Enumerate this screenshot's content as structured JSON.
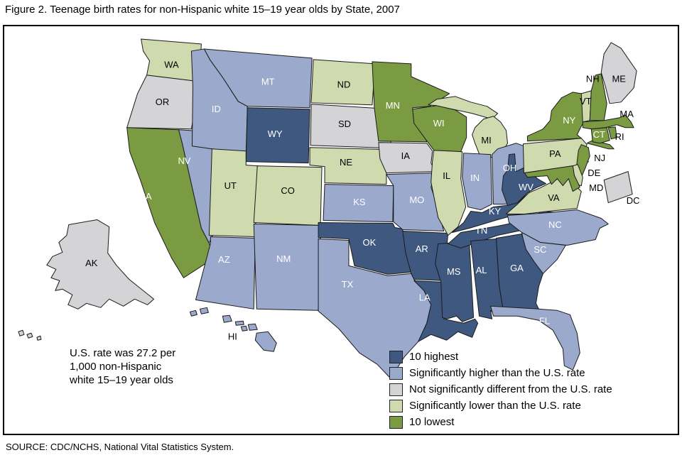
{
  "title": "Figure 2. Teenage birth rates for non-Hispanic white 15–19 year olds by State, 2007",
  "source": "SOURCE: CDC/NCHS, National Vital Statistics System.",
  "annotation": {
    "lines": [
      "U.S. rate was 27.2 per",
      "1,000 non-Hispanic",
      "white 15–19 year olds"
    ]
  },
  "colors": {
    "highest_10": "#3E5880",
    "sig_higher": "#9AA9CC",
    "not_sig_diff": "#D4D4D7",
    "sig_lower": "#CFDBAF",
    "lowest_10": "#7B9B43",
    "state_border": "#1b1b1b",
    "label_on_dark": "#FFFFFF",
    "label_on_light": "#000000"
  },
  "chart_data": {
    "type": "choropleth",
    "title": "Teenage birth rates for non-Hispanic white 15–19 year olds by State, 2007",
    "us_rate_note": "U.S. rate was 27.2 per 1,000 non-Hispanic white 15–19 year olds",
    "legend": [
      {
        "key": "highest_10",
        "label": "10 highest"
      },
      {
        "key": "sig_higher",
        "label": "Significantly higher than the U.S. rate"
      },
      {
        "key": "not_sig_diff",
        "label": "Not significantly different from the U.S. rate"
      },
      {
        "key": "sig_lower",
        "label": "Significantly lower than the U.S. rate"
      },
      {
        "key": "lowest_10",
        "label": "10 lowest"
      }
    ],
    "categories": {
      "highest_10": [
        "WY",
        "OK",
        "AR",
        "LA",
        "MS",
        "AL",
        "GA",
        "TN",
        "KY",
        "WV"
      ],
      "sig_higher": [
        "MT",
        "ID",
        "NV",
        "AZ",
        "NM",
        "KS",
        "MO",
        "TX",
        "IN",
        "OH",
        "NC",
        "SC",
        "FL",
        "HI"
      ],
      "not_sig_diff": [
        "OR",
        "SD",
        "IA",
        "ME",
        "AK",
        "DC"
      ],
      "sig_lower": [
        "WA",
        "UT",
        "CO",
        "ND",
        "NE",
        "IL",
        "MI",
        "PA",
        "VA",
        "VT",
        "DE"
      ],
      "lowest_10": [
        "CA",
        "MN",
        "WI",
        "NY",
        "NH",
        "MA",
        "CT",
        "RI",
        "NJ",
        "MD"
      ]
    },
    "states": [
      {
        "abbr": "WA",
        "category": "sig_lower"
      },
      {
        "abbr": "OR",
        "category": "not_sig_diff"
      },
      {
        "abbr": "CA",
        "category": "lowest_10"
      },
      {
        "abbr": "NV",
        "category": "sig_higher"
      },
      {
        "abbr": "ID",
        "category": "sig_higher"
      },
      {
        "abbr": "MT",
        "category": "sig_higher"
      },
      {
        "abbr": "WY",
        "category": "highest_10"
      },
      {
        "abbr": "UT",
        "category": "sig_lower"
      },
      {
        "abbr": "CO",
        "category": "sig_lower"
      },
      {
        "abbr": "AZ",
        "category": "sig_higher"
      },
      {
        "abbr": "NM",
        "category": "sig_higher"
      },
      {
        "abbr": "ND",
        "category": "sig_lower"
      },
      {
        "abbr": "SD",
        "category": "not_sig_diff"
      },
      {
        "abbr": "NE",
        "category": "sig_lower"
      },
      {
        "abbr": "KS",
        "category": "sig_higher"
      },
      {
        "abbr": "OK",
        "category": "highest_10"
      },
      {
        "abbr": "TX",
        "category": "sig_higher"
      },
      {
        "abbr": "MN",
        "category": "lowest_10"
      },
      {
        "abbr": "IA",
        "category": "not_sig_diff"
      },
      {
        "abbr": "MO",
        "category": "sig_higher"
      },
      {
        "abbr": "AR",
        "category": "highest_10"
      },
      {
        "abbr": "LA",
        "category": "highest_10"
      },
      {
        "abbr": "WI",
        "category": "lowest_10"
      },
      {
        "abbr": "IL",
        "category": "sig_lower"
      },
      {
        "abbr": "MS",
        "category": "highest_10"
      },
      {
        "abbr": "MI",
        "category": "sig_lower"
      },
      {
        "abbr": "IN",
        "category": "sig_higher"
      },
      {
        "abbr": "OH",
        "category": "sig_higher"
      },
      {
        "abbr": "KY",
        "category": "highest_10"
      },
      {
        "abbr": "TN",
        "category": "highest_10"
      },
      {
        "abbr": "WV",
        "category": "highest_10"
      },
      {
        "abbr": "VA",
        "category": "sig_lower"
      },
      {
        "abbr": "NC",
        "category": "sig_higher"
      },
      {
        "abbr": "SC",
        "category": "sig_higher"
      },
      {
        "abbr": "GA",
        "category": "highest_10"
      },
      {
        "abbr": "AL",
        "category": "highest_10"
      },
      {
        "abbr": "FL",
        "category": "sig_higher"
      },
      {
        "abbr": "PA",
        "category": "sig_lower"
      },
      {
        "abbr": "NY",
        "category": "lowest_10"
      },
      {
        "abbr": "VT",
        "category": "sig_lower"
      },
      {
        "abbr": "NH",
        "category": "lowest_10"
      },
      {
        "abbr": "ME",
        "category": "not_sig_diff"
      },
      {
        "abbr": "MA",
        "category": "lowest_10"
      },
      {
        "abbr": "CT",
        "category": "lowest_10"
      },
      {
        "abbr": "RI",
        "category": "lowest_10"
      },
      {
        "abbr": "NJ",
        "category": "lowest_10"
      },
      {
        "abbr": "DE",
        "category": "sig_lower"
      },
      {
        "abbr": "MD",
        "category": "lowest_10"
      },
      {
        "abbr": "DC",
        "category": "not_sig_diff"
      },
      {
        "abbr": "AK",
        "category": "not_sig_diff"
      },
      {
        "abbr": "HI",
        "category": "sig_higher"
      }
    ]
  }
}
